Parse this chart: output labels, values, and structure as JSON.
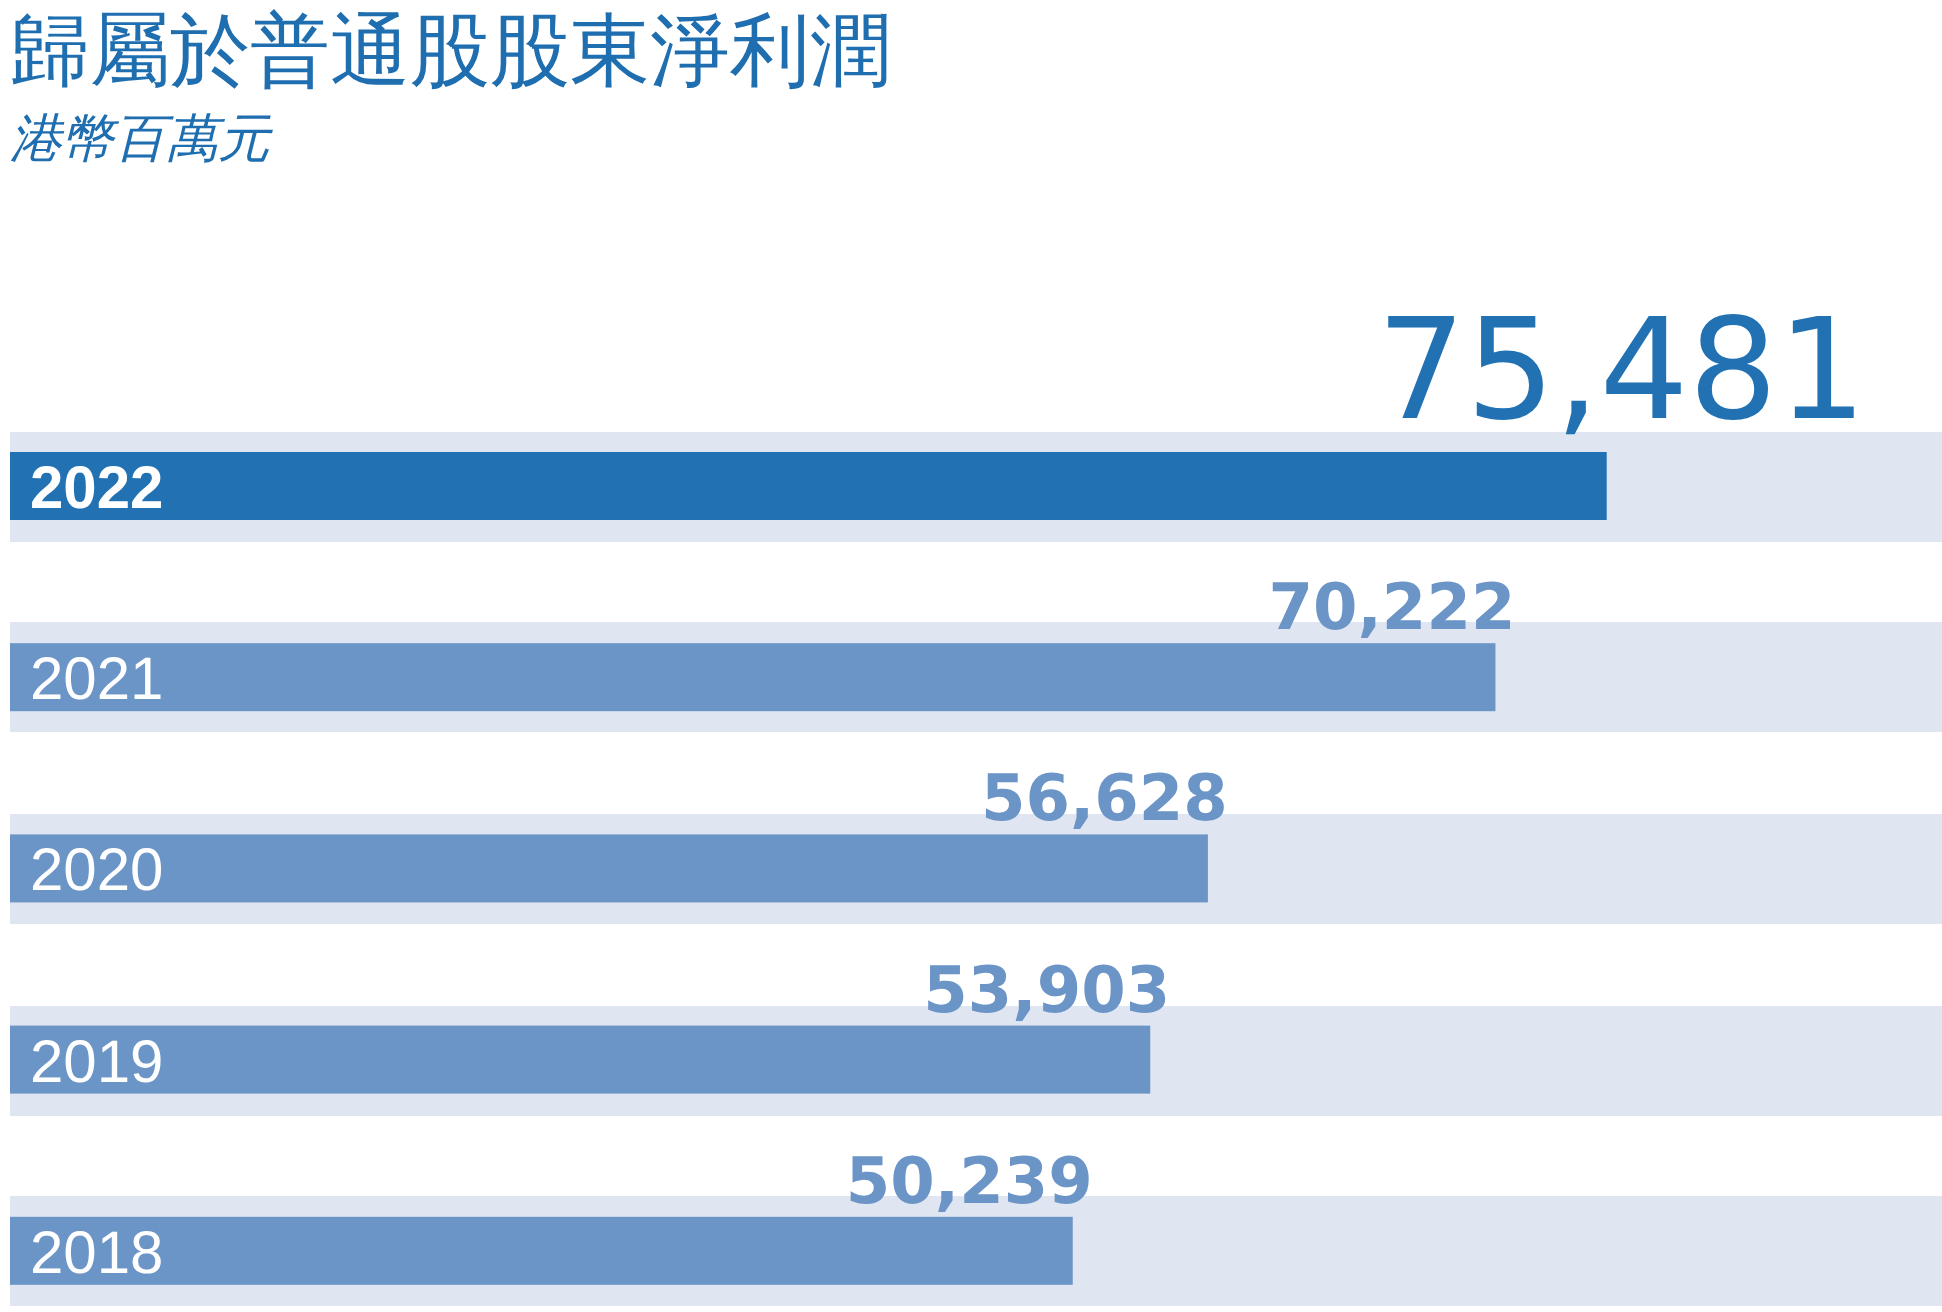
{
  "chart_data": {
    "type": "bar",
    "orientation": "horizontal",
    "title": "歸屬於普通股股東淨利潤",
    "subtitle": "港幣百萬元",
    "categories": [
      "2022",
      "2021",
      "2020",
      "2019",
      "2018"
    ],
    "values": [
      75481,
      70222,
      56628,
      53903,
      50239
    ],
    "colors": [
      "#2272b3",
      "#6b94c7",
      "#6b94c7",
      "#6b94c7",
      "#6b94c7"
    ],
    "value_labels": [
      "75,481",
      "70,222",
      "56,628",
      "53,903",
      "50,239"
    ],
    "bands": [
      {
        "axis": "y",
        "from": "2022",
        "to": "2022",
        "color": "#dfe5f1"
      },
      {
        "axis": "y",
        "from": "2021",
        "to": "2021",
        "color": "#dfe5f1"
      },
      {
        "axis": "y",
        "from": "2020",
        "to": "2020",
        "color": "#dfe5f1"
      },
      {
        "axis": "y",
        "from": "2019",
        "to": "2019",
        "color": "#dfe5f1"
      },
      {
        "axis": "y",
        "from": "2018",
        "to": "2018",
        "color": "#dfe5f1"
      }
    ]
  }
}
